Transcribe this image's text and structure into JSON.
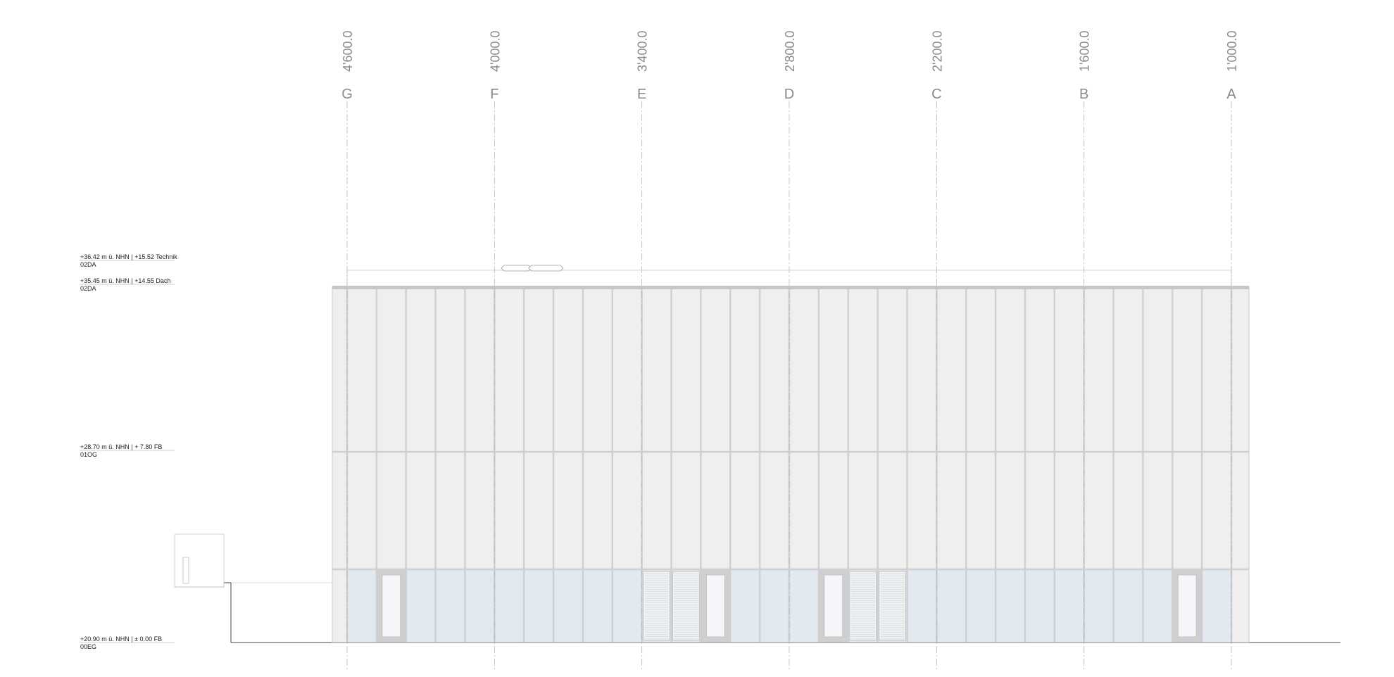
{
  "grid_axes": [
    {
      "letter": "G",
      "dimension": "4'600.0"
    },
    {
      "letter": "F",
      "dimension": "4'000.0"
    },
    {
      "letter": "E",
      "dimension": "3'400.0"
    },
    {
      "letter": "D",
      "dimension": "2'800.0"
    },
    {
      "letter": "C",
      "dimension": "2'200.0"
    },
    {
      "letter": "B",
      "dimension": "1'600.0"
    },
    {
      "letter": "A",
      "dimension": "1'000.0"
    }
  ],
  "levels": [
    {
      "label": "+36.42 m ü. NHN | +15.52 Technik",
      "floor": "02DA"
    },
    {
      "label": "+35.45 m ü. NHN | +14.55 Dach",
      "floor": "02DA"
    },
    {
      "label": "+28.70 m ü. NHN | + 7.80 FB",
      "floor": "01OG"
    },
    {
      "label": "+20.90 m ü. NHN | ± 0.00 FB",
      "floor": "00EG"
    }
  ],
  "colors": {
    "facade": "#efefef",
    "glazing": "#e3e9f1",
    "mullion": "#cfcfcf",
    "axis_text": "#8a8a8a"
  }
}
